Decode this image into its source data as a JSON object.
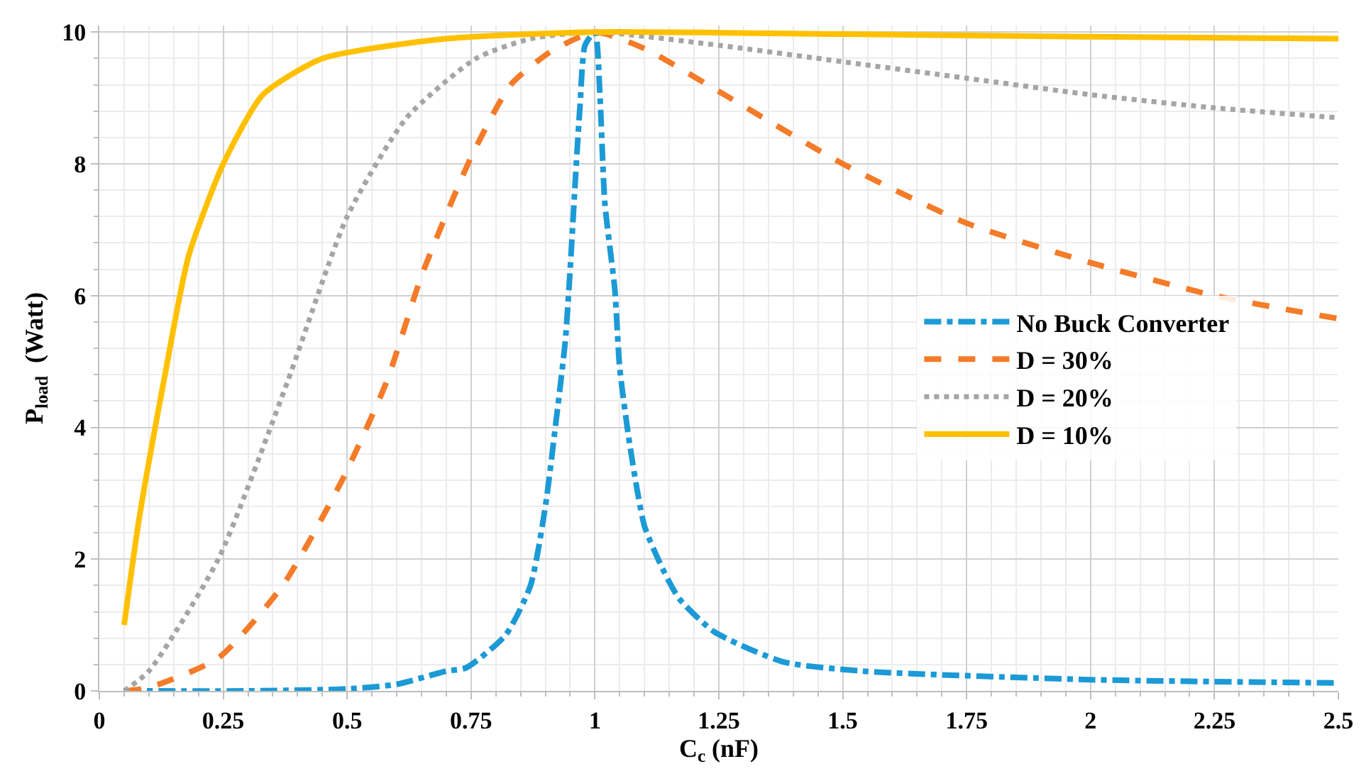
{
  "chart_data": {
    "type": "line",
    "xlabel": "C$_{c}$ (nF)",
    "ylabel": "P$_{load}$  (Watt)",
    "xlim": [
      0,
      2.5
    ],
    "xticks": [
      0,
      0.25,
      0.5,
      0.75,
      1,
      1.25,
      1.5,
      1.75,
      2,
      2.25,
      2.5
    ],
    "ylim": [
      0,
      10.1
    ],
    "yticks": [
      0,
      2,
      4,
      6,
      8,
      10
    ],
    "grid": true,
    "legend": "right",
    "marker": "none",
    "series": [
      {
        "name": "No Buck Converter",
        "color": "#1b9ad6",
        "line_style": "dashdot",
        "x": [
          0.05,
          0.3,
          0.5,
          0.6,
          0.7,
          0.74,
          0.82,
          0.87,
          0.9,
          0.92,
          0.94,
          0.95,
          0.96,
          0.97,
          0.98,
          1.0,
          1.01,
          1.02,
          1.04,
          1.05,
          1.07,
          1.1,
          1.14,
          1.17,
          1.24,
          1.38,
          1.54,
          2.0,
          2.5
        ],
        "values": [
          0,
          0,
          0.03,
          0.1,
          0.3,
          0.35,
          0.85,
          1.6,
          2.8,
          4.0,
          5.3,
          6.4,
          7.7,
          8.9,
          9.8,
          10,
          9.05,
          7.4,
          6.1,
          4.9,
          3.75,
          2.5,
          1.8,
          1.4,
          0.9,
          0.44,
          0.3,
          0.17,
          0.12
        ]
      },
      {
        "name": "D = 30%",
        "color": "#f47b28",
        "line_style": "dashed",
        "x": [
          0.05,
          0.1,
          0.24,
          0.37,
          0.49,
          0.58,
          0.65,
          0.75,
          0.83,
          0.91,
          1.0,
          1.1,
          1.25,
          1.5,
          1.75,
          2.0,
          2.25,
          2.5
        ],
        "values": [
          0,
          0.05,
          0.5,
          1.6,
          3.2,
          4.7,
          6.3,
          8.1,
          9.2,
          9.7,
          10,
          9.75,
          9.1,
          8.0,
          7.1,
          6.5,
          6.0,
          5.65
        ]
      },
      {
        "name": "D = 20%",
        "color": "#a5a5a5",
        "line_style": "dotted",
        "x": [
          0.05,
          0.1,
          0.24,
          0.38,
          0.5,
          0.62,
          0.76,
          0.87,
          1.0,
          1.25,
          1.5,
          1.75,
          2.0,
          2.25,
          2.5
        ],
        "values": [
          0,
          0.3,
          2.0,
          4.7,
          7.2,
          8.7,
          9.6,
          9.9,
          10,
          9.8,
          9.55,
          9.3,
          9.05,
          8.85,
          8.7
        ]
      },
      {
        "name": "D = 10%",
        "color": "#ffc000",
        "line_style": "solid",
        "x": [
          0.05,
          0.08,
          0.13,
          0.18,
          0.25,
          0.33,
          0.45,
          0.7,
          1.0,
          1.5,
          2.0,
          2.5
        ],
        "values": [
          1.0,
          2.6,
          4.7,
          6.6,
          8.0,
          9.05,
          9.6,
          9.9,
          10,
          9.97,
          9.93,
          9.9
        ]
      }
    ]
  }
}
